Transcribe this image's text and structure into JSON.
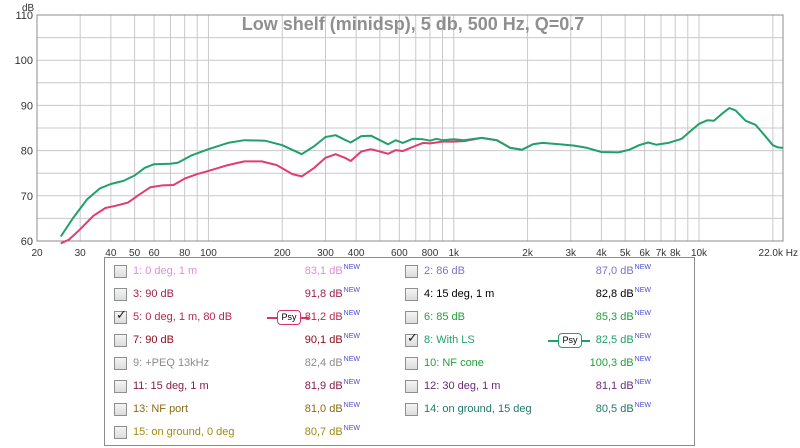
{
  "chart_data": {
    "type": "line",
    "title": "Low shelf (minidsp), 5 db, 500 Hz, Q=0.7",
    "ylabel": "dB",
    "xlabel": "",
    "x_scale": "log",
    "xlim": [
      20,
      22000
    ],
    "ylim": [
      60,
      110
    ],
    "grid": true,
    "x_tick_labels": [
      "20",
      "30",
      "40",
      "50",
      "60",
      "80",
      "100",
      "200",
      "300",
      "400",
      "600",
      "800",
      "1k",
      "2k",
      "3k",
      "4k",
      "5k",
      "6k",
      "7k",
      "8k",
      "10k",
      "22,0k Hz"
    ],
    "x_tick_values": [
      20,
      30,
      40,
      50,
      60,
      80,
      100,
      200,
      300,
      400,
      600,
      800,
      1000,
      2000,
      3000,
      4000,
      5000,
      6000,
      7000,
      8000,
      10000,
      22000
    ],
    "y_tick_labels": [
      "110",
      "100",
      "90",
      "80",
      "70",
      "60"
    ],
    "y_tick_values": [
      110,
      100,
      90,
      80,
      70,
      60
    ],
    "series": [
      {
        "name": "8: With LS",
        "color": "#22a06b",
        "points": [
          [
            25,
            61
          ],
          [
            28,
            65
          ],
          [
            32,
            69.2
          ],
          [
            36,
            71.6
          ],
          [
            40,
            72.6
          ],
          [
            45,
            73.3
          ],
          [
            50,
            74.5
          ],
          [
            55,
            76.2
          ],
          [
            60,
            77
          ],
          [
            70,
            77.1
          ],
          [
            75,
            77.3
          ],
          [
            85,
            78.9
          ],
          [
            100,
            80.3
          ],
          [
            120,
            81.7
          ],
          [
            140,
            82.3
          ],
          [
            170,
            82.2
          ],
          [
            200,
            81.2
          ],
          [
            240,
            79.2
          ],
          [
            270,
            81
          ],
          [
            300,
            83
          ],
          [
            330,
            83.4
          ],
          [
            360,
            82.4
          ],
          [
            380,
            81.8
          ],
          [
            420,
            83.2
          ],
          [
            460,
            83.3
          ],
          [
            500,
            82.3
          ],
          [
            540,
            81.4
          ],
          [
            580,
            82.3
          ],
          [
            620,
            81.7
          ],
          [
            680,
            82.6
          ],
          [
            750,
            82.5
          ],
          [
            800,
            82.2
          ],
          [
            850,
            82.6
          ],
          [
            900,
            82.3
          ],
          [
            1000,
            82.5
          ],
          [
            1100,
            82.3
          ],
          [
            1300,
            82.8
          ],
          [
            1500,
            82.3
          ],
          [
            1700,
            80.6
          ],
          [
            1900,
            80.2
          ],
          [
            2100,
            81.4
          ],
          [
            2300,
            81.7
          ],
          [
            2700,
            81.4
          ],
          [
            3100,
            81.1
          ],
          [
            3500,
            80.6
          ],
          [
            4000,
            79.7
          ],
          [
            4700,
            79.6
          ],
          [
            5200,
            80.2
          ],
          [
            5700,
            81.2
          ],
          [
            6200,
            81.8
          ],
          [
            6700,
            81.3
          ],
          [
            7500,
            81.7
          ],
          [
            8500,
            82.6
          ],
          [
            9000,
            83.8
          ],
          [
            10000,
            85.9
          ],
          [
            10800,
            86.7
          ],
          [
            11500,
            86.6
          ],
          [
            12500,
            88.3
          ],
          [
            13300,
            89.4
          ],
          [
            14100,
            88.9
          ],
          [
            15500,
            86.6
          ],
          [
            17000,
            85.7
          ],
          [
            18500,
            83.4
          ],
          [
            20000,
            81.2
          ],
          [
            21000,
            80.7
          ],
          [
            22000,
            80.6
          ]
        ]
      },
      {
        "name": "5: 0 deg, 1 m, 80 dB",
        "color": "#e03c72",
        "points": [
          [
            25,
            59.5
          ],
          [
            27,
            60.3
          ],
          [
            30,
            62.6
          ],
          [
            34,
            65.6
          ],
          [
            38,
            67.3
          ],
          [
            42,
            67.8
          ],
          [
            47,
            68.5
          ],
          [
            52,
            70.2
          ],
          [
            58,
            71.9
          ],
          [
            65,
            72.3
          ],
          [
            72,
            72.4
          ],
          [
            80,
            73.8
          ],
          [
            90,
            74.8
          ],
          [
            100,
            75.5
          ],
          [
            120,
            76.8
          ],
          [
            140,
            77.6
          ],
          [
            165,
            77.6
          ],
          [
            190,
            76.8
          ],
          [
            220,
            74.8
          ],
          [
            240,
            74.3
          ],
          [
            270,
            76.2
          ],
          [
            300,
            78.4
          ],
          [
            330,
            79.2
          ],
          [
            360,
            78.4
          ],
          [
            380,
            77.7
          ],
          [
            420,
            79.8
          ],
          [
            460,
            80.3
          ],
          [
            500,
            79.8
          ],
          [
            540,
            79.3
          ],
          [
            580,
            80.1
          ],
          [
            620,
            79.9
          ],
          [
            680,
            80.8
          ],
          [
            750,
            81.7
          ],
          [
            800,
            81.6
          ],
          [
            850,
            81.8
          ],
          [
            900,
            82
          ],
          [
            1000,
            82
          ],
          [
            1100,
            82.1
          ],
          [
            1300,
            82.8
          ],
          [
            1500,
            82.3
          ],
          [
            1700,
            80.6
          ],
          [
            1900,
            80.2
          ]
        ]
      }
    ]
  },
  "legend": {
    "items": [
      {
        "id": "1",
        "label": "1: 0 deg, 1 m",
        "value": "83,1 dB",
        "new": "NEW",
        "checked": false,
        "color": "#e08ed4",
        "psy": false
      },
      {
        "id": "2",
        "label": "2: 86 dB",
        "value": "87,0 dB",
        "new": "NEW",
        "checked": false,
        "color": "#7b74c9",
        "psy": false
      },
      {
        "id": "3",
        "label": "3: 90 dB",
        "value": "91,8 dB",
        "new": "NEW",
        "checked": false,
        "color": "#9c2147",
        "psy": false
      },
      {
        "id": "4",
        "label": "4: 15 deg, 1 m",
        "value": "82,8 dB",
        "new": "NEW",
        "checked": false,
        "color": "#000000",
        "psy": false
      },
      {
        "id": "5",
        "label": "5: 0 deg, 1 m, 80 dB",
        "value": "81,2 dB",
        "new": "NEW",
        "checked": true,
        "color": "#b8284e",
        "psy": true,
        "psy_label": "Psy",
        "psy_color": "#d9336a"
      },
      {
        "id": "6",
        "label": "6: 85 dB",
        "value": "85,3 dB",
        "new": "NEW",
        "checked": false,
        "color": "#22a03a",
        "psy": false
      },
      {
        "id": "7",
        "label": "7: 90 dB",
        "value": "90,1 dB",
        "new": "NEW",
        "checked": false,
        "color": "#8a0a1c",
        "psy": false
      },
      {
        "id": "8",
        "label": "8: With LS",
        "value": "82,5 dB",
        "new": "NEW",
        "checked": true,
        "color": "#22a06b",
        "psy": true,
        "psy_label": "Psy",
        "psy_color": "#22a06b"
      },
      {
        "id": "9",
        "label": "9: +PEQ 13kHz",
        "value": "82,4 dB",
        "new": "NEW",
        "checked": false,
        "color": "#8c8c8c",
        "psy": false
      },
      {
        "id": "10",
        "label": "10: NF cone",
        "value": "100,3 dB",
        "new": "NEW",
        "checked": false,
        "color": "#22a03a",
        "psy": false
      },
      {
        "id": "11",
        "label": "11: 15 deg, 1 m",
        "value": "81,9 dB",
        "new": "NEW",
        "checked": false,
        "color": "#8a1c4a",
        "psy": false
      },
      {
        "id": "12",
        "label": "12: 30 deg, 1 m",
        "value": "81,1 dB",
        "new": "NEW",
        "checked": false,
        "color": "#6c2a7a",
        "psy": false
      },
      {
        "id": "13",
        "label": "13: NF port",
        "value": "81,0 dB",
        "new": "NEW",
        "checked": false,
        "color": "#8a6a12",
        "psy": false
      },
      {
        "id": "14",
        "label": "14: on ground, 15 deg",
        "value": "80,5 dB",
        "new": "NEW",
        "checked": false,
        "color": "#1f7a6a",
        "psy": false
      },
      {
        "id": "15",
        "label": "15: on ground, 0 deg",
        "value": "80,7 dB",
        "new": "NEW",
        "checked": false,
        "color": "#a08a12",
        "psy": false
      }
    ]
  }
}
